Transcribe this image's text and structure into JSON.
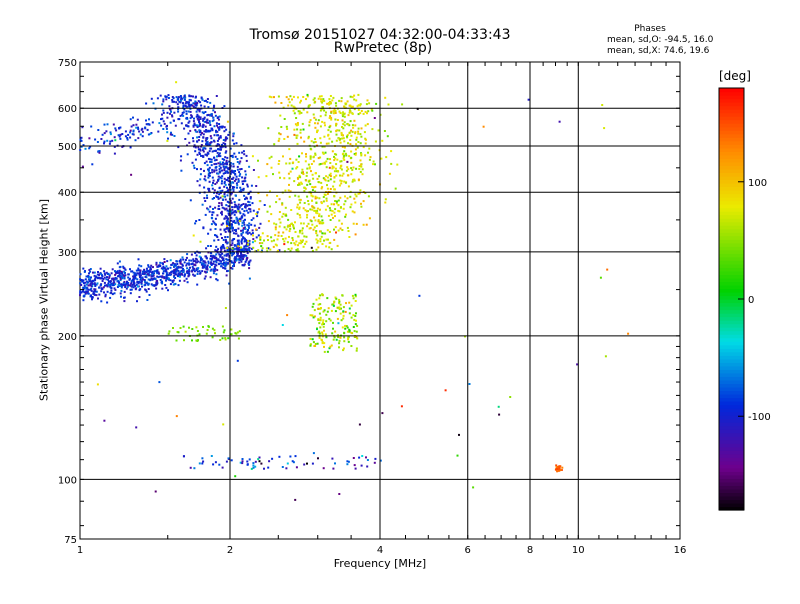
{
  "header": {
    "title_line1": "Tromsø 20151027 04:32:00-04:33:43",
    "title_line2": "RwPretec (8p)",
    "stats_heading": "Phases",
    "stats_line1": "mean, sd,O: -94.5, 16.0",
    "stats_line2": "mean, sd,X:  74.6, 19.6"
  },
  "colorbar": {
    "unit": "[deg]",
    "range": [
      -180,
      180
    ],
    "ticks": [
      100,
      0,
      -100
    ],
    "tick_labels": [
      "100",
      "0",
      "-100"
    ],
    "colormap": "rainbow (black-violet-blue-cyan-green-yellow-orange-red)"
  },
  "chart_data": {
    "type": "scatter",
    "title": "Tromsø 20151027 04:32:00-04:33:43",
    "subtitle": "RwPretec (8p)",
    "xlabel": "Frequency [MHz]",
    "ylabel": "Stationary phase Virtual Height [km]",
    "x_scale": "log",
    "y_scale": "log",
    "xlim": [
      1,
      16
    ],
    "ylim": [
      75,
      750
    ],
    "x_ticks": [
      1,
      2,
      4,
      6,
      8,
      10,
      16
    ],
    "x_tick_labels": [
      "1",
      "2",
      "4",
      "6",
      "8",
      "10",
      "16"
    ],
    "y_ticks": [
      75,
      100,
      200,
      300,
      400,
      500,
      600,
      750
    ],
    "y_tick_labels": [
      "75",
      "100",
      "200",
      "300",
      "400",
      "500",
      "600",
      "750"
    ],
    "grid_x": [
      2,
      4,
      6,
      8,
      10
    ],
    "grid_y": [
      100,
      200,
      300,
      400,
      500,
      600
    ],
    "color_variable": "phase [deg]",
    "clusters": [
      {
        "name": "O-trace lower",
        "f": [
          1.0,
          2.2
        ],
        "h_start": 255,
        "h_end": 300,
        "phase_mean": -94.5,
        "phase_sd": 16.0
      },
      {
        "name": "O-trace upper",
        "f": [
          1.55,
          2.2
        ],
        "h": [
          300,
          640
        ],
        "phase_mean": -94.5,
        "phase_sd": 16.0
      },
      {
        "name": "O-trace low-frequency cusp",
        "f": [
          1.0,
          1.55
        ],
        "h": [
          480,
          580
        ],
        "phase_mean": -94.5,
        "phase_sd": 16.0
      },
      {
        "name": "X-trace",
        "f": [
          2.3,
          4.0
        ],
        "h": [
          300,
          640
        ],
        "phase_mean": 74.6,
        "phase_sd": 19.6
      },
      {
        "name": "Sporadic layer ~190 km",
        "f": [
          2.9,
          3.6
        ],
        "h": [
          185,
          245
        ],
        "phase_mean": 60,
        "phase_sd": 25
      },
      {
        "name": "Layer ~205 km",
        "f": [
          1.5,
          2.1
        ],
        "h": [
          195,
          210
        ],
        "phase_mean": 45,
        "phase_sd": 15
      },
      {
        "name": "E-layer echoes ~108 km",
        "f": [
          1.6,
          4.3
        ],
        "h": [
          105,
          112
        ],
        "phase_mean": -100,
        "phase_sd": 40
      },
      {
        "name": "Echo cluster ~105 km",
        "f": [
          9.0,
          9.3
        ],
        "h": [
          104,
          107
        ],
        "phase_mean": 140,
        "phase_sd": 10
      }
    ]
  }
}
